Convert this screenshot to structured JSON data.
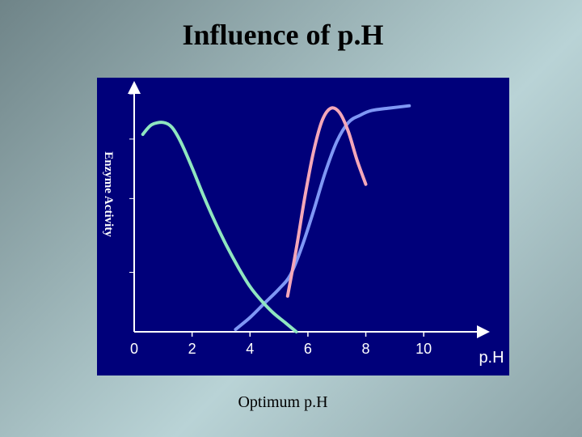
{
  "slide": {
    "title": "Influence of p.H",
    "caption": "Optimum p.H"
  },
  "colors": {
    "panel_bg": "#00007a",
    "axis": "#ffffff",
    "green_curve": "#8fe6c0",
    "pink_curve": "#f4a7b9",
    "blue_curve": "#7f97f5"
  },
  "chart_data": {
    "type": "line",
    "title": "",
    "xlabel": "p.H",
    "ylabel": "Enzyme Activity",
    "xlim": [
      0,
      11
    ],
    "ylim": [
      0,
      1
    ],
    "xticks": [
      0,
      2,
      4,
      6,
      8,
      10
    ],
    "xtick_labels": [
      "0",
      "2",
      "4",
      "6",
      "8",
      "10"
    ],
    "yticks_labels_shown": false,
    "grid": false,
    "legend": "none",
    "series": [
      {
        "color": "#8fe6c0",
        "x": [
          0.3,
          0.6,
          1.0,
          1.3,
          1.6,
          2.0,
          2.4,
          2.8,
          3.2,
          3.6,
          4.0,
          4.4,
          4.8,
          5.2,
          5.6
        ],
        "y": [
          0.83,
          0.87,
          0.88,
          0.86,
          0.8,
          0.69,
          0.57,
          0.46,
          0.36,
          0.27,
          0.19,
          0.13,
          0.08,
          0.04,
          0.0
        ]
      },
      {
        "color": "#f4a7b9",
        "x": [
          5.3,
          5.6,
          5.9,
          6.2,
          6.5,
          6.8,
          7.1,
          7.4,
          7.7,
          8.0
        ],
        "y": [
          0.15,
          0.35,
          0.57,
          0.76,
          0.89,
          0.94,
          0.92,
          0.84,
          0.72,
          0.62
        ]
      },
      {
        "color": "#7f97f5",
        "x": [
          3.5,
          4.0,
          4.5,
          5.0,
          5.4,
          5.8,
          6.2,
          6.6,
          7.0,
          7.4,
          7.8,
          8.2,
          8.8,
          9.5
        ],
        "y": [
          0.01,
          0.06,
          0.12,
          0.18,
          0.24,
          0.36,
          0.51,
          0.67,
          0.8,
          0.88,
          0.91,
          0.93,
          0.94,
          0.95
        ]
      }
    ]
  }
}
